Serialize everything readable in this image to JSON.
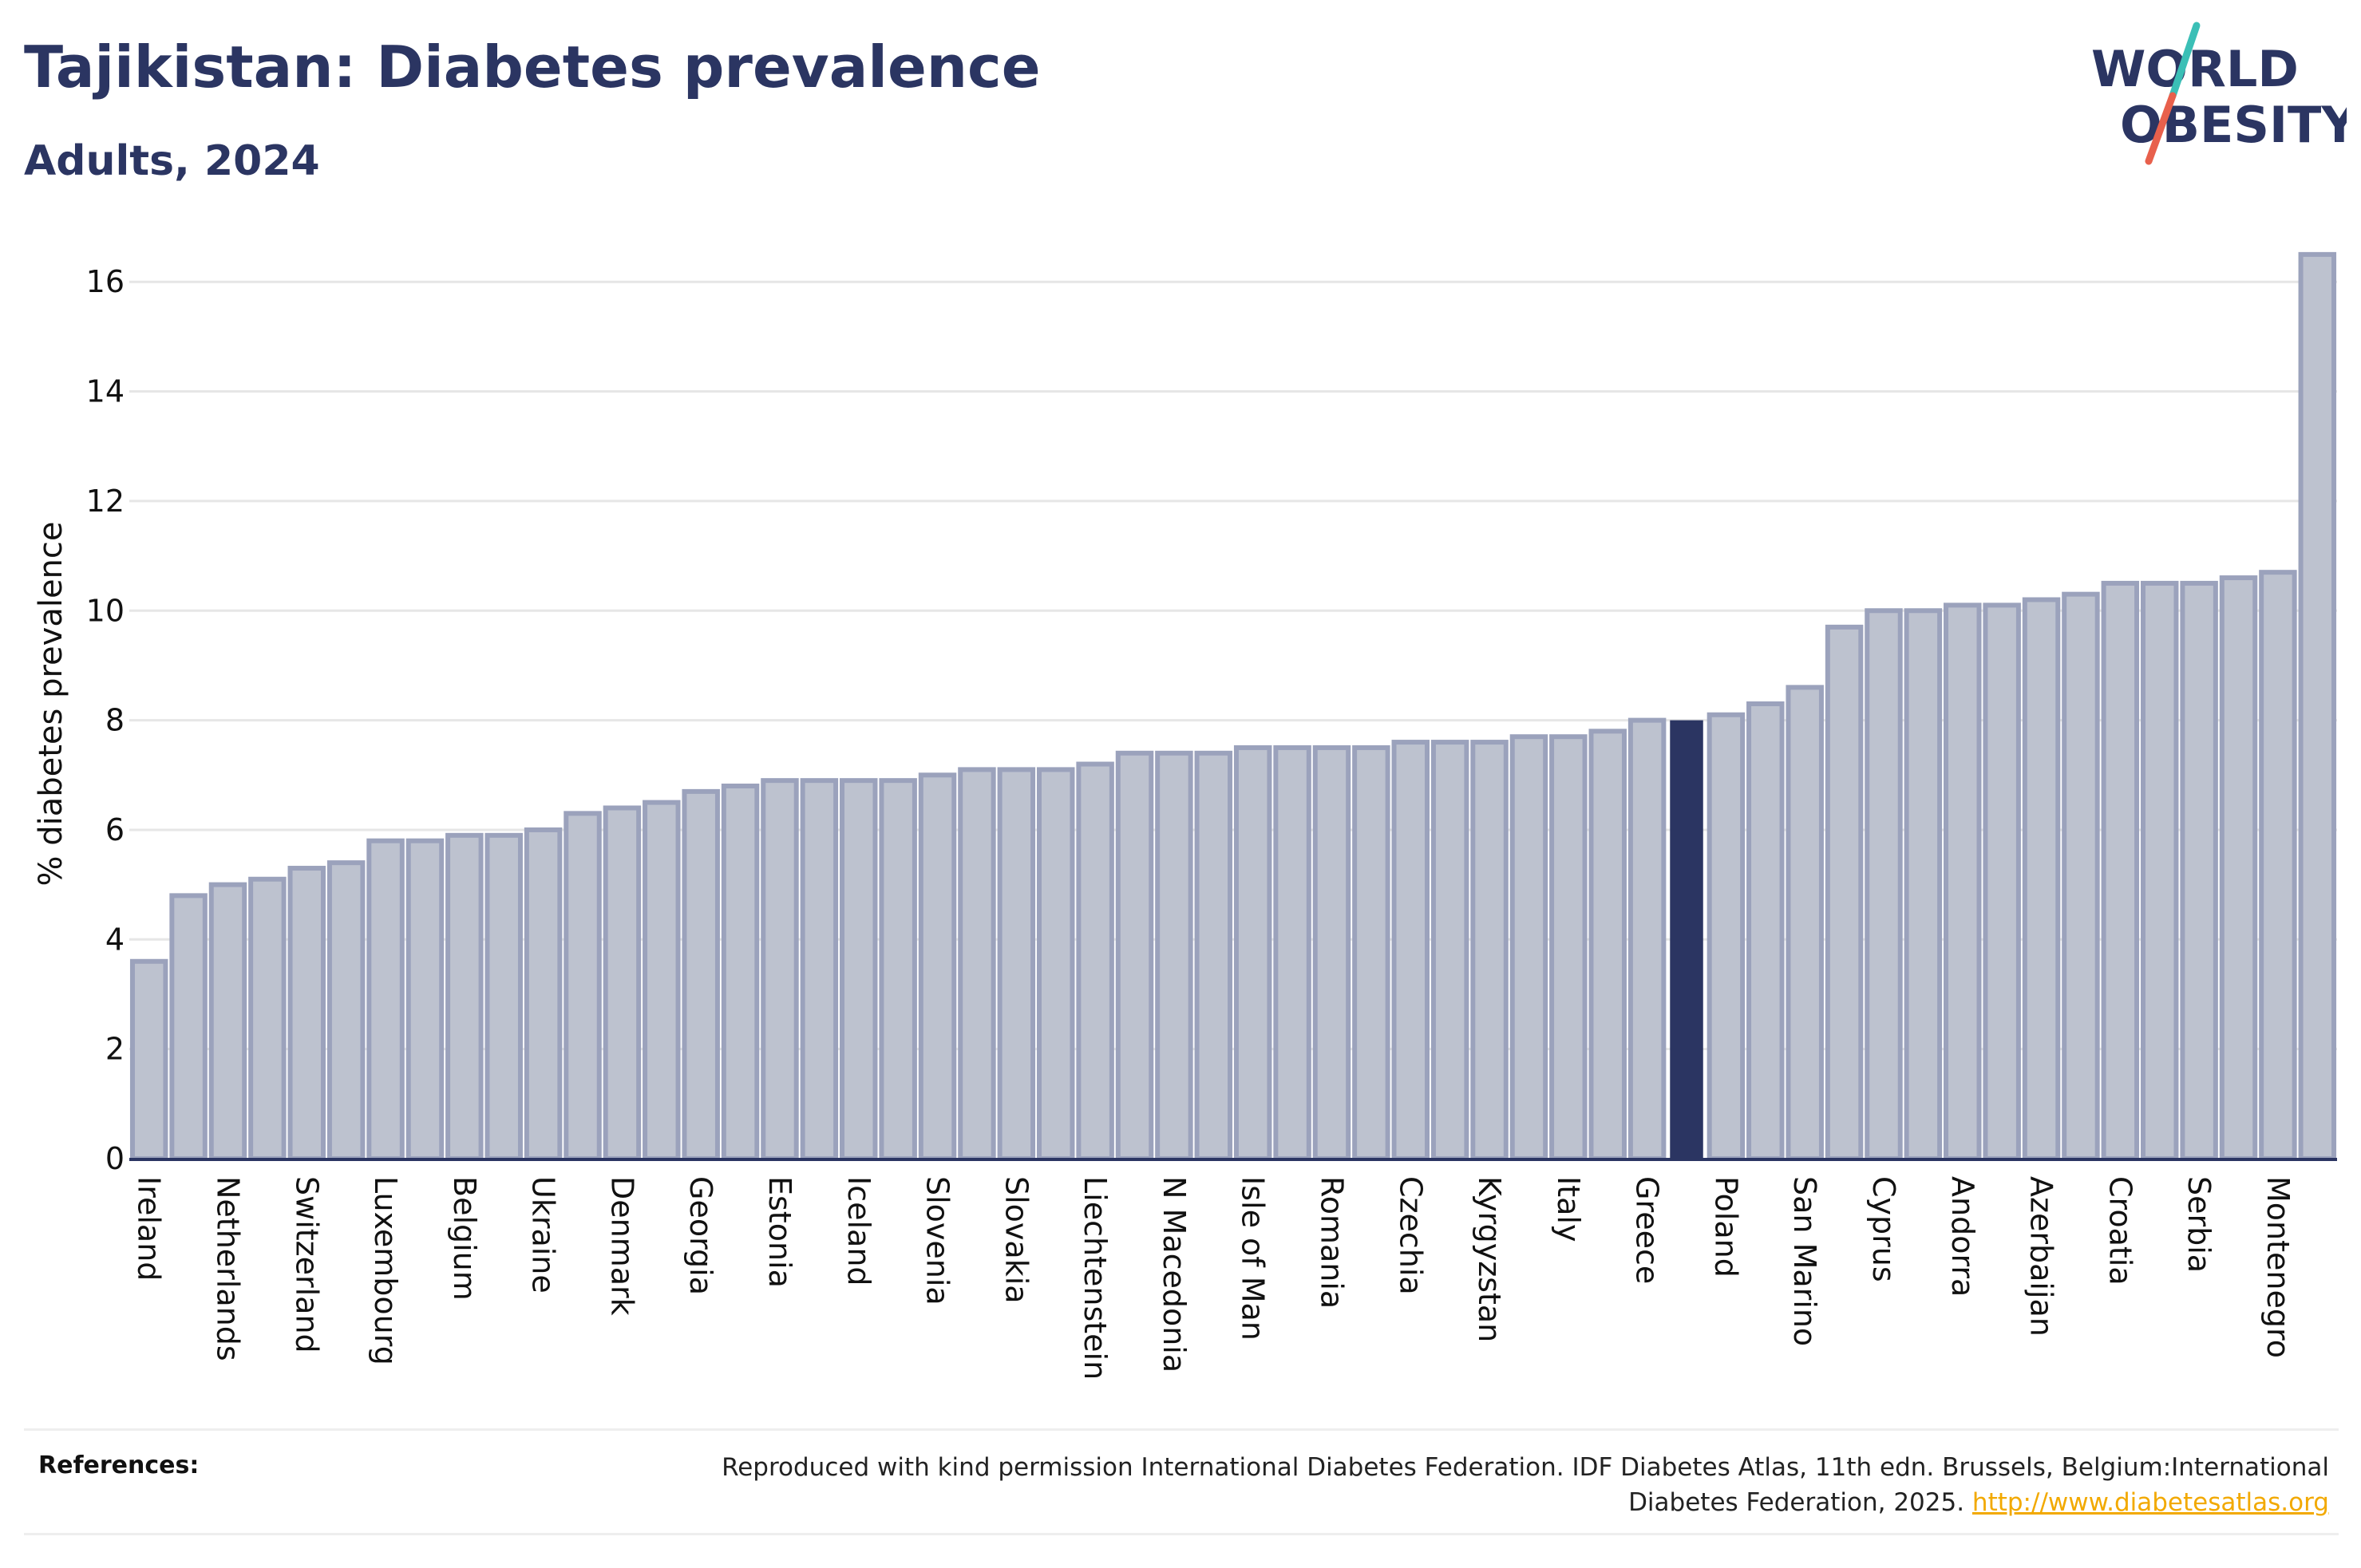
{
  "header": {
    "title": "Tajikistan: Diabetes prevalence",
    "subtitle": "Adults, 2024"
  },
  "logo": {
    "line1": "WORLD",
    "line2": "OBESITY",
    "text_color": "#2b3562",
    "slash_colors": [
      "#3bbfb6",
      "#e8604c"
    ]
  },
  "references": {
    "label": "References:",
    "text": "Reproduced with kind permission International Diabetes Federation. IDF Diabetes Atlas, 11th edn. Brussels, Belgium:International Diabetes Federation, 2025.",
    "link": "http://www.diabetesatlas.org"
  },
  "colors": {
    "bar_fill": "#bdc2cf",
    "bar_stroke": "#9ba2bc",
    "highlight": "#2b3562",
    "grid": "#e6e6e6",
    "axis": "#2b3562"
  },
  "chart_data": {
    "type": "bar",
    "title": "Tajikistan: Diabetes prevalence",
    "subtitle": "Adults, 2024",
    "ylabel": "% diabetes prevalence",
    "xlabel": "",
    "ylim": [
      0,
      16.6
    ],
    "yticks": [
      0,
      2,
      4,
      6,
      8,
      10,
      12,
      14,
      16
    ],
    "grid": true,
    "highlight_category": "Tajikistan",
    "categories": [
      "Ireland",
      "",
      "Netherlands",
      "",
      "Switzerland",
      "",
      "Luxembourg",
      "",
      "Belgium",
      "",
      "Ukraine",
      "",
      "Denmark",
      "",
      "Georgia",
      "",
      "Estonia",
      "",
      "Iceland",
      "",
      "Slovenia",
      "",
      "Slovakia",
      "",
      "Liechtenstein",
      "",
      "N Macedonia",
      "",
      "Isle of Man",
      "",
      "Romania",
      "",
      "Czechia",
      "",
      "Kyrgyzstan",
      "",
      "Italy",
      "",
      "Greece",
      "",
      "Poland",
      "",
      "San Marino",
      "",
      "Cyprus",
      "",
      "Andorra",
      "",
      "Azerbaijan",
      "",
      "Croatia",
      "",
      "Serbia",
      "",
      "Montenegro",
      ""
    ],
    "highlight_index": 39,
    "values": [
      3.6,
      4.8,
      5.0,
      5.1,
      5.3,
      5.4,
      5.8,
      5.8,
      5.9,
      5.9,
      6.0,
      6.3,
      6.4,
      6.5,
      6.7,
      6.8,
      6.9,
      6.9,
      6.9,
      6.9,
      7.0,
      7.1,
      7.1,
      7.1,
      7.2,
      7.4,
      7.4,
      7.4,
      7.5,
      7.5,
      7.5,
      7.5,
      7.6,
      7.6,
      7.6,
      7.7,
      7.7,
      7.8,
      8.0,
      8.0,
      8.1,
      8.3,
      8.6,
      9.7,
      10.0,
      10.0,
      10.1,
      10.1,
      10.2,
      10.3,
      10.5,
      10.5,
      10.5,
      10.6,
      10.7,
      16.5
    ]
  }
}
